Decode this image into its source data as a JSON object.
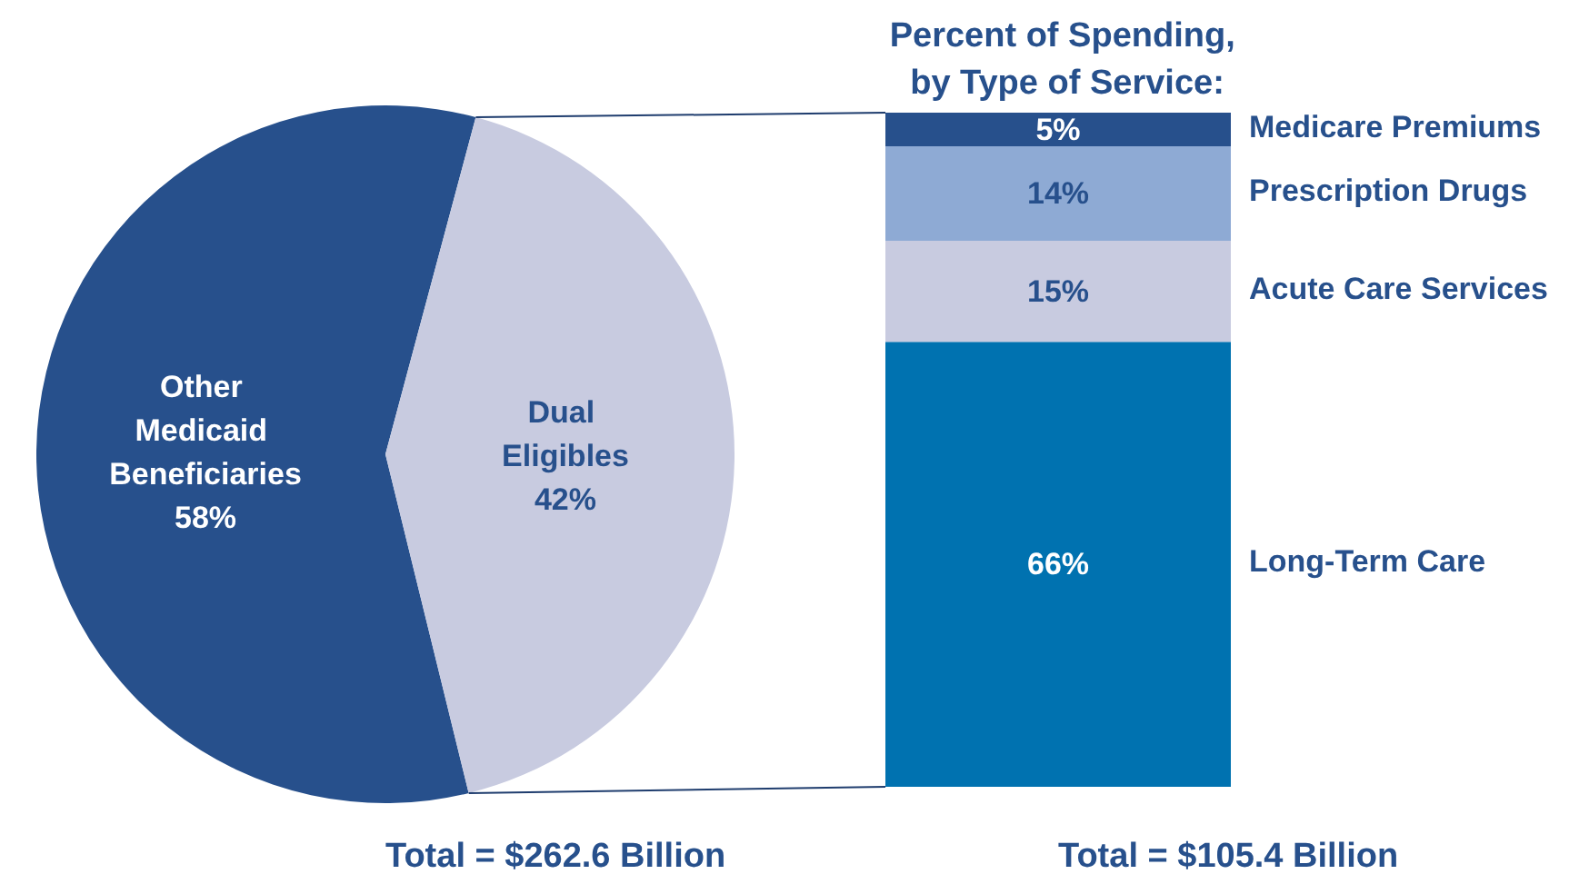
{
  "chart_data": [
    {
      "type": "pie",
      "categories": [
        "Other Medicaid Beneficiaries",
        "Dual Eligibles"
      ],
      "values": [
        58,
        42
      ],
      "colors": [
        "#27508c",
        "#c8cbe0"
      ],
      "value_labels": [
        "58%",
        "42%"
      ],
      "annotations": [
        "Total = $262.6 Billion"
      ]
    },
    {
      "type": "bar",
      "stacked": true,
      "title": "Percent of Spending, by Type of Service:",
      "categories": [
        null
      ],
      "series": [
        {
          "name": "Long-Term Care",
          "color": "#0072b0",
          "values": [
            66
          ],
          "value_labels": [
            "66%"
          ]
        },
        {
          "name": "Acute Care Services",
          "color": "#c8cbe0",
          "values": [
            15
          ],
          "value_labels": [
            "15%"
          ]
        },
        {
          "name": "Prescription Drugs",
          "color": "#8eaad4",
          "values": [
            14
          ],
          "value_labels": [
            "14%"
          ]
        },
        {
          "name": "Medicare Premiums",
          "color": "#27508c",
          "values": [
            5
          ],
          "value_labels": [
            "5%"
          ]
        }
      ],
      "annotations": [
        "Total = $105.4 Billion"
      ]
    }
  ]
}
